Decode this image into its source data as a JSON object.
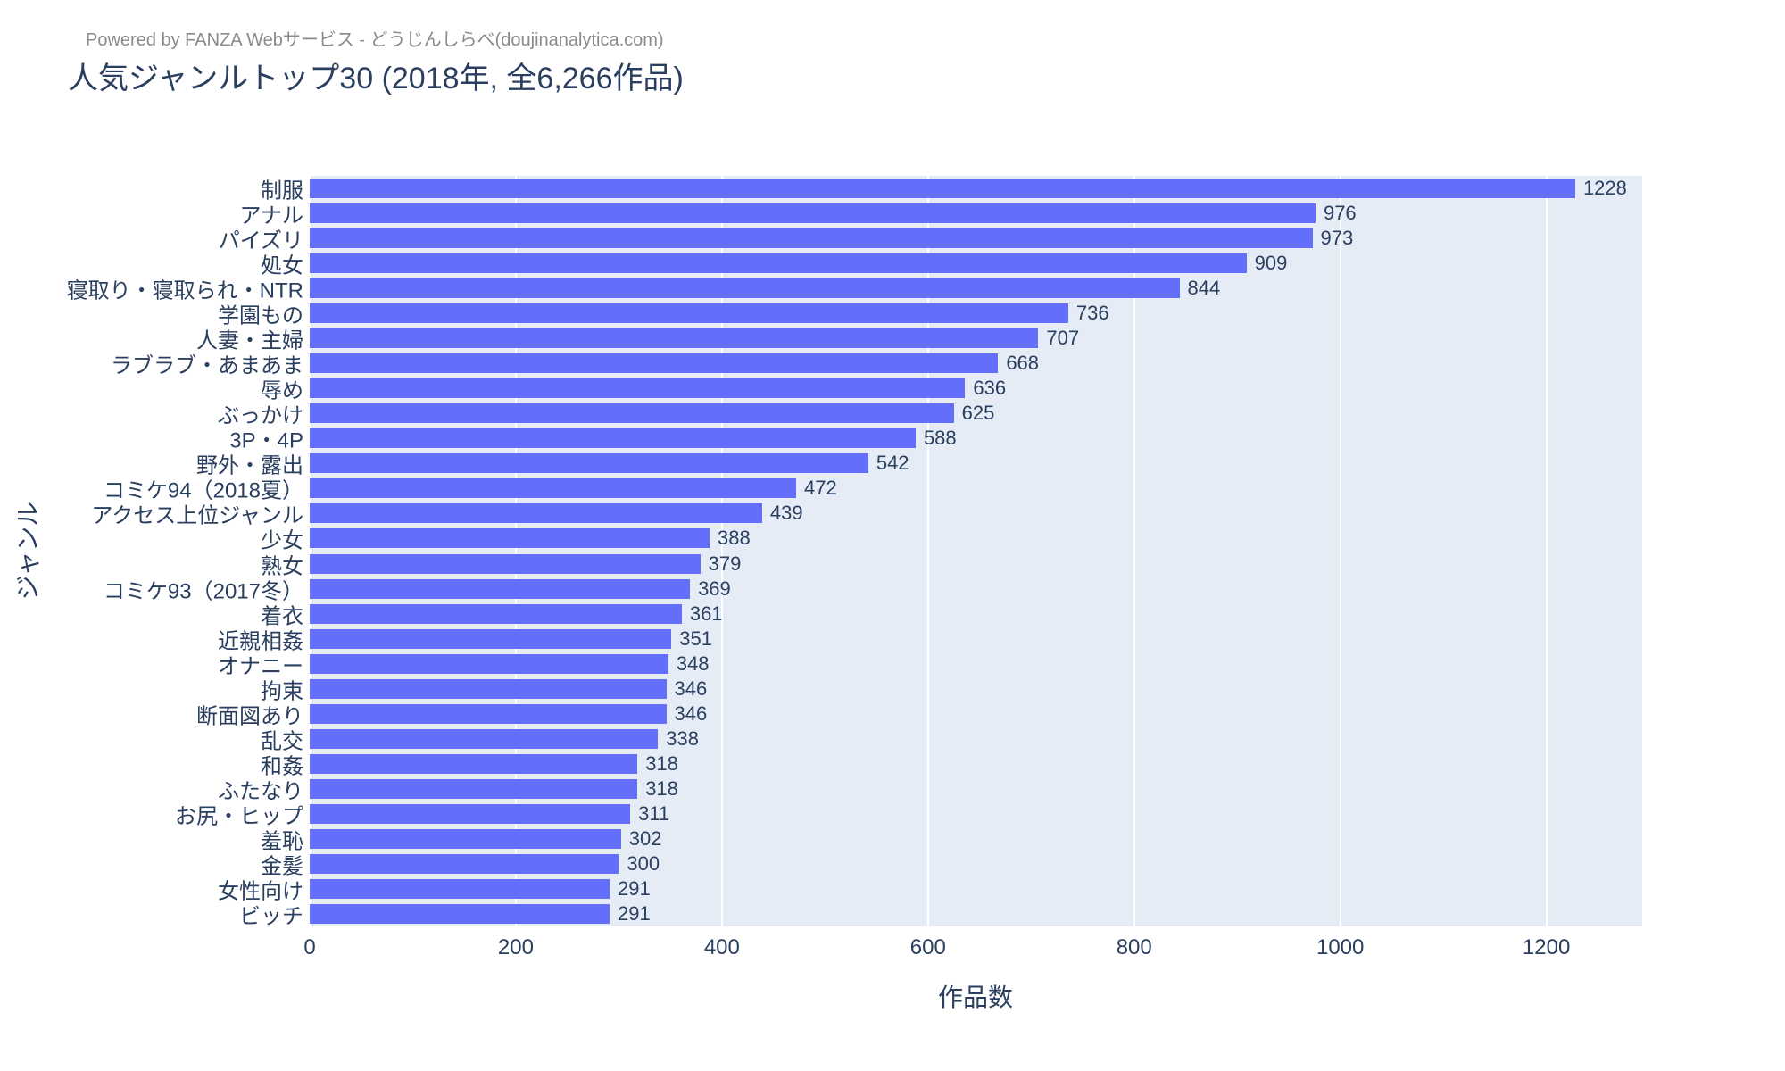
{
  "chart_data": {
    "type": "bar",
    "orientation": "horizontal",
    "title": "人気ジャンルトップ30 (2018年, 全6,266作品)",
    "attribution": "Powered by FANZA Webサービス - どうじんしらべ(doujinanalytica.com)",
    "xlabel": "作品数",
    "ylabel": "ジャンル",
    "xlim": [
      0,
      1293
    ],
    "x_ticks": [
      0,
      200,
      400,
      600,
      800,
      1000,
      1200
    ],
    "grid": true,
    "legend": "none",
    "colors": {
      "bar": "#636efa",
      "plot_background": "#e5ecf6",
      "gridline": "#ffffff",
      "text": "#2a3f5f",
      "attribution_text": "#8a8a8a"
    },
    "categories": [
      "制服",
      "アナル",
      "パイズリ",
      "処女",
      "寝取り・寝取られ・NTR",
      "学園もの",
      "人妻・主婦",
      "ラブラブ・あまあま",
      "辱め",
      "ぶっかけ",
      "3P・4P",
      "野外・露出",
      "コミケ94（2018夏）",
      "アクセス上位ジャンル",
      "少女",
      "熟女",
      "コミケ93（2017冬）",
      "着衣",
      "近親相姦",
      "オナニー",
      "拘束",
      "断面図あり",
      "乱交",
      "和姦",
      "ふたなり",
      "お尻・ヒップ",
      "羞恥",
      "金髪",
      "女性向け",
      "ビッチ"
    ],
    "values": [
      1228,
      976,
      973,
      909,
      844,
      736,
      707,
      668,
      636,
      625,
      588,
      542,
      472,
      439,
      388,
      379,
      369,
      361,
      351,
      348,
      346,
      346,
      338,
      318,
      318,
      311,
      302,
      300,
      291,
      291
    ]
  }
}
